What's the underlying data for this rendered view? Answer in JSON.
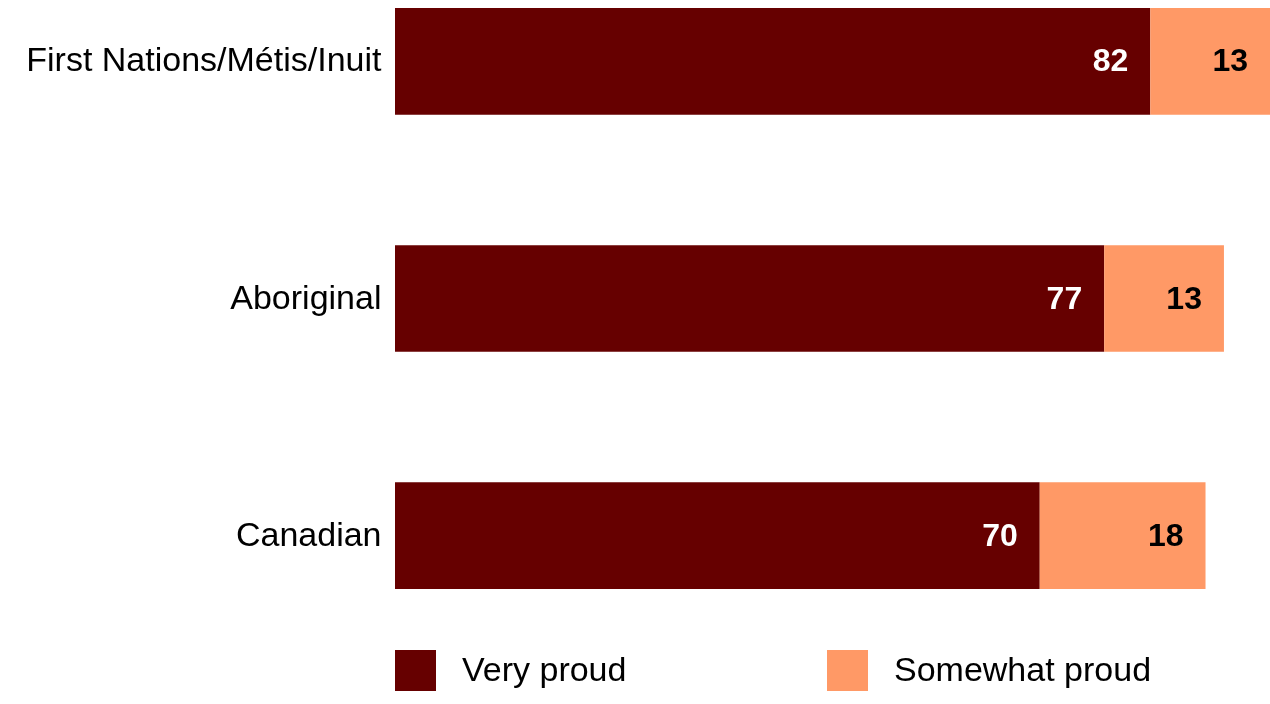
{
  "chart_data": {
    "type": "bar",
    "orientation": "horizontal",
    "stacked": true,
    "categories": [
      "First Nations/Métis/Inuit",
      "Aboriginal",
      "Canadian"
    ],
    "series": [
      {
        "name": "Very proud",
        "color": "#660000",
        "values": [
          82,
          77,
          70
        ]
      },
      {
        "name": "Somewhat proud",
        "color": "#ff9966",
        "values": [
          13,
          13,
          18
        ]
      }
    ],
    "data_labels": true,
    "legend": "bottom",
    "tick_labels": "y"
  }
}
